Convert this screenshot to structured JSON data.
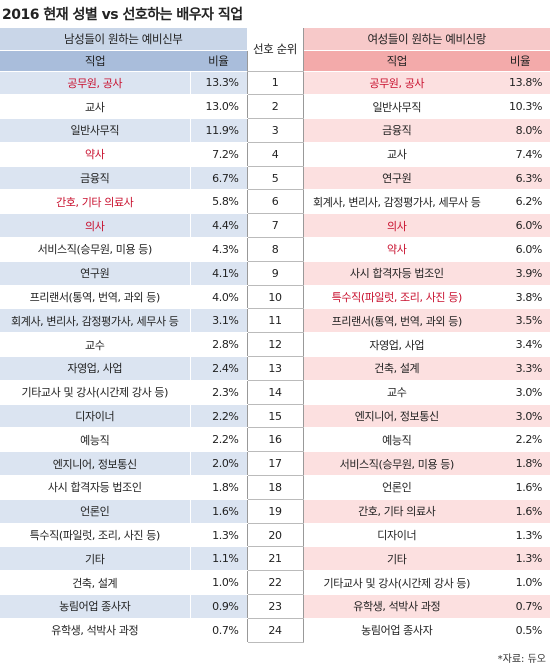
{
  "title": "2016 현재 성별 vs 선호하는 배우자 직업",
  "men": {
    "header": "남성들이 원하는 예비신부",
    "columns": [
      "직업",
      "비율"
    ]
  },
  "rank_header": "선호 순위",
  "women": {
    "header": "여성들이 원하는 예비신랑",
    "columns": [
      "직업",
      "비율"
    ]
  },
  "rows": [
    {
      "rank": 1,
      "men": {
        "job": "공무원, 공사",
        "rate": "13.3%",
        "highlight": true
      },
      "women": {
        "job": "공무원, 공사",
        "rate": "13.8%",
        "highlight": true
      }
    },
    {
      "rank": 2,
      "men": {
        "job": "교사",
        "rate": "13.0%",
        "highlight": false
      },
      "women": {
        "job": "일반사무직",
        "rate": "10.3%",
        "highlight": false
      }
    },
    {
      "rank": 3,
      "men": {
        "job": "일반사무직",
        "rate": "11.9%",
        "highlight": false
      },
      "women": {
        "job": "금융직",
        "rate": "8.0%",
        "highlight": false
      }
    },
    {
      "rank": 4,
      "men": {
        "job": "약사",
        "rate": "7.2%",
        "highlight": true
      },
      "women": {
        "job": "교사",
        "rate": "7.4%",
        "highlight": false
      }
    },
    {
      "rank": 5,
      "men": {
        "job": "금융직",
        "rate": "6.7%",
        "highlight": false
      },
      "women": {
        "job": "연구원",
        "rate": "6.3%",
        "highlight": false
      }
    },
    {
      "rank": 6,
      "men": {
        "job": "간호, 기타 의료사",
        "rate": "5.8%",
        "highlight": true
      },
      "women": {
        "job": "회계사, 변리사, 감정평가사, 세무사 등",
        "rate": "6.2%",
        "highlight": false
      }
    },
    {
      "rank": 7,
      "men": {
        "job": "의사",
        "rate": "4.4%",
        "highlight": true
      },
      "women": {
        "job": "의사",
        "rate": "6.0%",
        "highlight": true
      }
    },
    {
      "rank": 8,
      "men": {
        "job": "서비스직(승무원, 미용 등)",
        "rate": "4.3%",
        "highlight": false
      },
      "women": {
        "job": "약사",
        "rate": "6.0%",
        "highlight": true
      }
    },
    {
      "rank": 9,
      "men": {
        "job": "연구원",
        "rate": "4.1%",
        "highlight": false
      },
      "women": {
        "job": "사시 합격자등 법조인",
        "rate": "3.9%",
        "highlight": false
      }
    },
    {
      "rank": 10,
      "men": {
        "job": "프리랜서(통역, 번역, 과외 등)",
        "rate": "4.0%",
        "highlight": false
      },
      "women": {
        "job": "특수직(파일럿, 조리, 사진 등)",
        "rate": "3.8%",
        "highlight": true
      }
    },
    {
      "rank": 11,
      "men": {
        "job": "회계사, 변리사, 감정평가사, 세무사 등",
        "rate": "3.1%",
        "highlight": false
      },
      "women": {
        "job": "프리랜서(통역, 번역, 과외 등)",
        "rate": "3.5%",
        "highlight": false
      }
    },
    {
      "rank": 12,
      "men": {
        "job": "교수",
        "rate": "2.8%",
        "highlight": false
      },
      "women": {
        "job": "자영업, 사업",
        "rate": "3.4%",
        "highlight": false
      }
    },
    {
      "rank": 13,
      "men": {
        "job": "자영업, 사업",
        "rate": "2.4%",
        "highlight": false
      },
      "women": {
        "job": "건축, 설계",
        "rate": "3.3%",
        "highlight": false
      }
    },
    {
      "rank": 14,
      "men": {
        "job": "기타교사 및 강사(시간제 강사 등)",
        "rate": "2.3%",
        "highlight": false
      },
      "women": {
        "job": "교수",
        "rate": "3.0%",
        "highlight": false
      }
    },
    {
      "rank": 15,
      "men": {
        "job": "디자이너",
        "rate": "2.2%",
        "highlight": false
      },
      "women": {
        "job": "엔지니어, 정보통신",
        "rate": "3.0%",
        "highlight": false
      }
    },
    {
      "rank": 16,
      "men": {
        "job": "예능직",
        "rate": "2.2%",
        "highlight": false
      },
      "women": {
        "job": "예능직",
        "rate": "2.2%",
        "highlight": false
      }
    },
    {
      "rank": 17,
      "men": {
        "job": "엔지니어, 정보통신",
        "rate": "2.0%",
        "highlight": false
      },
      "women": {
        "job": "서비스직(승무원, 미용 등)",
        "rate": "1.8%",
        "highlight": false
      }
    },
    {
      "rank": 18,
      "men": {
        "job": "사시 합격자등 법조인",
        "rate": "1.8%",
        "highlight": false
      },
      "women": {
        "job": "언론인",
        "rate": "1.6%",
        "highlight": false
      }
    },
    {
      "rank": 19,
      "men": {
        "job": "언론인",
        "rate": "1.6%",
        "highlight": false
      },
      "women": {
        "job": "간호, 기타 의료사",
        "rate": "1.6%",
        "highlight": false
      }
    },
    {
      "rank": 20,
      "men": {
        "job": "특수직(파일럿, 조리, 사진 등)",
        "rate": "1.3%",
        "highlight": false
      },
      "women": {
        "job": "디자이너",
        "rate": "1.3%",
        "highlight": false
      }
    },
    {
      "rank": 21,
      "men": {
        "job": "기타",
        "rate": "1.1%",
        "highlight": false
      },
      "women": {
        "job": "기타",
        "rate": "1.3%",
        "highlight": false
      }
    },
    {
      "rank": 22,
      "men": {
        "job": "건축, 설계",
        "rate": "1.0%",
        "highlight": false
      },
      "women": {
        "job": "기타교사 및 강사(시간제 강사 등)",
        "rate": "1.0%",
        "highlight": false
      }
    },
    {
      "rank": 23,
      "men": {
        "job": "농림어업 종사자",
        "rate": "0.9%",
        "highlight": false
      },
      "women": {
        "job": "유학생, 석박사 과정",
        "rate": "0.7%",
        "highlight": false
      }
    },
    {
      "rank": 24,
      "men": {
        "job": "유학생, 석박사 과정",
        "rate": "0.7%",
        "highlight": false
      },
      "women": {
        "job": "농림어업 종사자",
        "rate": "0.5%",
        "highlight": false
      }
    }
  ],
  "source": "*자료: 듀오"
}
